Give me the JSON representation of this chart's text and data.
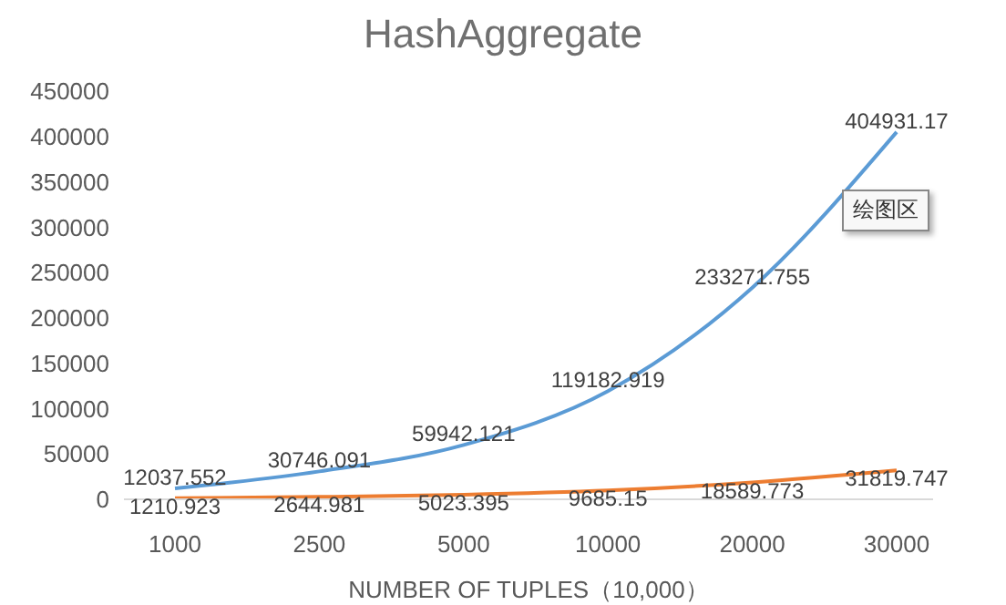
{
  "chart_data": {
    "type": "line",
    "title": "HashAggregate",
    "xlabel": "NUMBER OF TUPLES（10,000）",
    "categories": [
      "1000",
      "2500",
      "5000",
      "10000",
      "20000",
      "30000"
    ],
    "series": [
      {
        "color": "#5b9bd5",
        "values": [
          12037.552,
          30746.091,
          59942.121,
          119182.919,
          233271.755,
          404931.17
        ]
      },
      {
        "color": "#ed7d31",
        "values": [
          1210.923,
          2644.981,
          5023.395,
          9685.15,
          18589.773,
          31819.747
        ]
      }
    ],
    "ylim": [
      0,
      450000
    ],
    "yticks": [
      0,
      50000,
      100000,
      150000,
      200000,
      250000,
      300000,
      350000,
      400000,
      450000
    ],
    "data_labels": true,
    "marker": "none",
    "grid": false,
    "legend": false,
    "annotations": [
      "绘图区"
    ]
  }
}
